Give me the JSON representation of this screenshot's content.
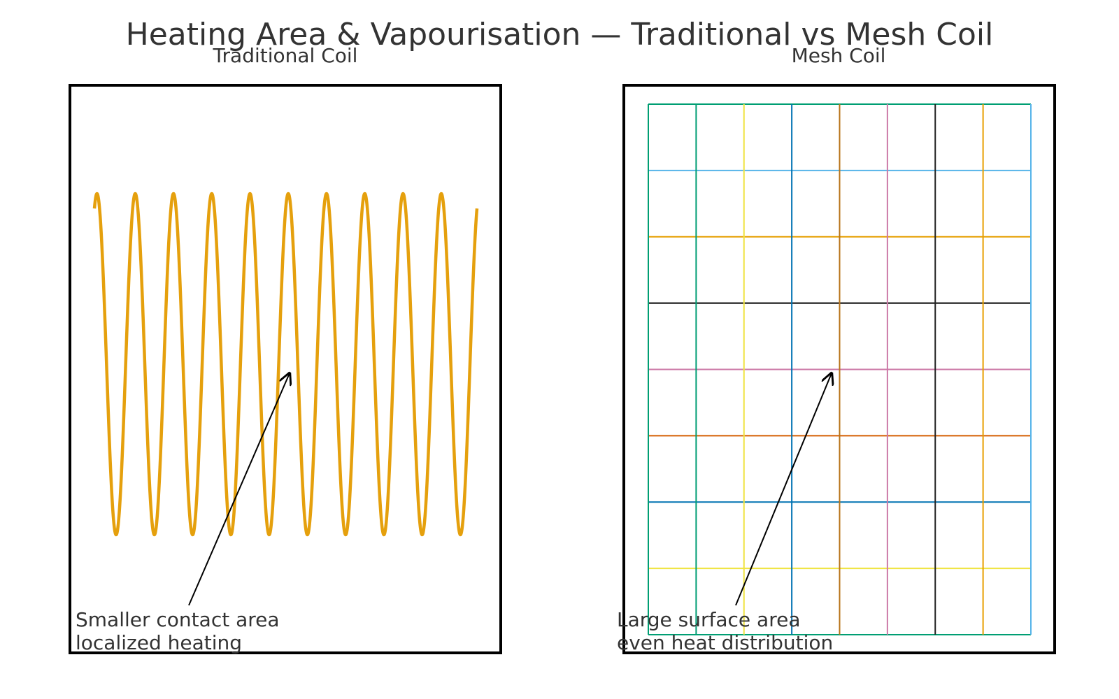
{
  "title": "Heating Area & Vapourisation — Traditional vs Mesh Coil",
  "panels": {
    "traditional": {
      "title": "Traditional Coil",
      "note_lines": [
        "Smaller contact area",
        "localized heating"
      ],
      "icon": "wavy-coil-wire",
      "coil_color": "#E5A00D",
      "turns": 10
    },
    "mesh": {
      "title": "Mesh Coil",
      "note_lines": [
        "Large surface area",
        "even heat distribution"
      ],
      "icon": "mesh-grid",
      "vertical_line_colors": [
        "#009E73",
        "#009E73",
        "#F0E442",
        "#0072B2",
        "#B8741A",
        "#CC79A7",
        "#222222",
        "#E69F00",
        "#56B4E9"
      ],
      "horizontal_line_colors": [
        "#009E73",
        "#56B4E9",
        "#E69F00",
        "#000000",
        "#CC79A7",
        "#D55E00",
        "#0072B2",
        "#F0E442",
        "#009E73"
      ]
    }
  },
  "colors": {
    "text": "#333333",
    "frame": "#000000",
    "arrow": "#000000"
  }
}
